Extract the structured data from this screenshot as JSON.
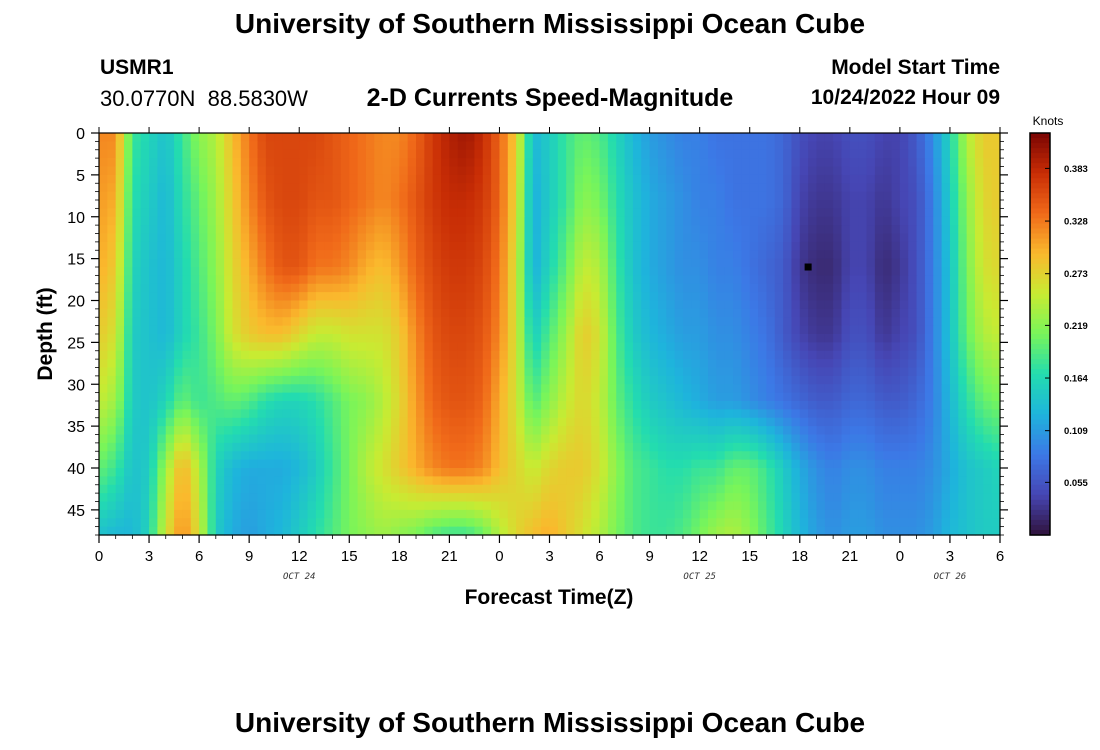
{
  "page": {
    "title": "University of Southern Mississippi Ocean Cube",
    "title_repeat": "University of Southern Mississippi Ocean Cube",
    "station_id": "USMR1",
    "coordinates": "30.0770N  88.5830W",
    "model_start_label": "Model Start Time",
    "model_start_value": "10/24/2022 Hour 09"
  },
  "chart_data": {
    "type": "heatmap",
    "title": "2-D Currents Speed-Magnitude",
    "xlabel": "Forecast Time(Z)",
    "ylabel": "Depth (ft)",
    "x_range_hours": [
      0,
      54
    ],
    "x_tick_hours": [
      0,
      3,
      6,
      9,
      12,
      15,
      18,
      21,
      24,
      27,
      30,
      33,
      36,
      39,
      42,
      45,
      48,
      51,
      54
    ],
    "x_tick_labels": [
      "0",
      "3",
      "6",
      "9",
      "12",
      "15",
      "18",
      "21",
      "0",
      "3",
      "6",
      "9",
      "12",
      "15",
      "18",
      "21",
      "0",
      "3",
      "6"
    ],
    "date_labels": [
      {
        "hour": 12,
        "text": "OCT 24"
      },
      {
        "hour": 36,
        "text": "OCT 25"
      },
      {
        "hour": 51,
        "text": "OCT 26"
      }
    ],
    "y_range_ft": [
      0,
      48
    ],
    "y_ticks": [
      0,
      5,
      10,
      15,
      20,
      25,
      30,
      35,
      40,
      45
    ],
    "y_tick_labels": [
      "0",
      "5",
      "10",
      "15",
      "20",
      "25",
      "30",
      "35",
      "40",
      "45"
    ],
    "colorbar": {
      "label": "Knots",
      "range": [
        0,
        0.42
      ],
      "ticks": [
        0.055,
        0.109,
        0.164,
        0.219,
        0.273,
        0.328,
        0.383
      ],
      "tick_labels": [
        "0.055",
        "0.109",
        "0.164",
        "0.219",
        "0.273",
        "0.328",
        "0.383"
      ]
    },
    "marker": {
      "hour": 42.5,
      "depth": 16
    },
    "depth_levels": [
      0,
      8,
      16,
      24,
      32,
      40,
      48
    ],
    "hours": [
      0,
      1,
      2,
      3,
      4,
      5,
      6,
      7,
      8,
      9,
      10,
      11,
      12,
      13,
      14,
      15,
      16,
      17,
      18,
      19,
      20,
      21,
      22,
      23,
      24,
      25,
      26,
      27,
      28,
      29,
      30,
      31,
      32,
      33,
      34,
      35,
      36,
      37,
      38,
      39,
      40,
      41,
      42,
      43,
      44,
      45,
      46,
      47,
      48,
      49,
      50,
      51,
      52,
      53,
      54
    ],
    "speed_knots": [
      [
        0.32,
        0.32,
        0.18,
        0.16,
        0.14,
        0.18,
        0.22,
        0.24,
        0.29,
        0.33,
        0.36,
        0.36,
        0.36,
        0.36,
        0.35,
        0.34,
        0.33,
        0.32,
        0.32,
        0.34,
        0.37,
        0.39,
        0.4,
        0.38,
        0.34,
        0.28,
        0.13,
        0.15,
        0.18,
        0.2,
        0.19,
        0.16,
        0.13,
        0.11,
        0.1,
        0.09,
        0.09,
        0.08,
        0.08,
        0.08,
        0.08,
        0.07,
        0.05,
        0.04,
        0.04,
        0.05,
        0.05,
        0.04,
        0.04,
        0.06,
        0.1,
        0.16,
        0.24,
        0.28,
        0.28
      ],
      [
        0.31,
        0.3,
        0.17,
        0.15,
        0.13,
        0.17,
        0.2,
        0.23,
        0.28,
        0.32,
        0.35,
        0.36,
        0.36,
        0.35,
        0.35,
        0.34,
        0.33,
        0.32,
        0.33,
        0.35,
        0.37,
        0.38,
        0.38,
        0.37,
        0.34,
        0.27,
        0.12,
        0.15,
        0.18,
        0.22,
        0.21,
        0.17,
        0.14,
        0.12,
        0.11,
        0.1,
        0.09,
        0.09,
        0.08,
        0.08,
        0.08,
        0.07,
        0.04,
        0.03,
        0.03,
        0.04,
        0.04,
        0.03,
        0.04,
        0.05,
        0.09,
        0.15,
        0.22,
        0.27,
        0.28
      ],
      [
        0.3,
        0.28,
        0.16,
        0.14,
        0.13,
        0.16,
        0.19,
        0.22,
        0.27,
        0.3,
        0.33,
        0.35,
        0.35,
        0.33,
        0.33,
        0.32,
        0.3,
        0.29,
        0.31,
        0.34,
        0.36,
        0.37,
        0.37,
        0.36,
        0.33,
        0.26,
        0.12,
        0.16,
        0.2,
        0.25,
        0.24,
        0.18,
        0.14,
        0.12,
        0.11,
        0.1,
        0.1,
        0.09,
        0.09,
        0.08,
        0.07,
        0.06,
        0.03,
        0.02,
        0.02,
        0.04,
        0.04,
        0.02,
        0.03,
        0.05,
        0.09,
        0.14,
        0.21,
        0.26,
        0.27
      ],
      [
        0.28,
        0.26,
        0.15,
        0.14,
        0.13,
        0.16,
        0.18,
        0.21,
        0.26,
        0.28,
        0.29,
        0.29,
        0.27,
        0.25,
        0.25,
        0.26,
        0.26,
        0.26,
        0.28,
        0.32,
        0.35,
        0.36,
        0.36,
        0.35,
        0.32,
        0.26,
        0.15,
        0.19,
        0.23,
        0.28,
        0.26,
        0.19,
        0.15,
        0.13,
        0.12,
        0.11,
        0.11,
        0.1,
        0.1,
        0.09,
        0.08,
        0.06,
        0.04,
        0.03,
        0.03,
        0.05,
        0.05,
        0.03,
        0.04,
        0.05,
        0.09,
        0.14,
        0.2,
        0.24,
        0.25
      ],
      [
        0.25,
        0.23,
        0.15,
        0.14,
        0.16,
        0.2,
        0.18,
        0.19,
        0.2,
        0.19,
        0.17,
        0.16,
        0.16,
        0.17,
        0.19,
        0.21,
        0.22,
        0.24,
        0.27,
        0.31,
        0.34,
        0.35,
        0.35,
        0.34,
        0.3,
        0.26,
        0.19,
        0.22,
        0.25,
        0.27,
        0.25,
        0.2,
        0.17,
        0.15,
        0.14,
        0.13,
        0.12,
        0.11,
        0.11,
        0.1,
        0.09,
        0.08,
        0.07,
        0.06,
        0.06,
        0.07,
        0.07,
        0.06,
        0.06,
        0.07,
        0.09,
        0.13,
        0.17,
        0.2,
        0.21
      ],
      [
        0.2,
        0.18,
        0.14,
        0.15,
        0.23,
        0.3,
        0.24,
        0.16,
        0.13,
        0.12,
        0.12,
        0.12,
        0.13,
        0.15,
        0.18,
        0.21,
        0.24,
        0.26,
        0.28,
        0.3,
        0.32,
        0.33,
        0.33,
        0.32,
        0.29,
        0.27,
        0.25,
        0.27,
        0.28,
        0.28,
        0.26,
        0.22,
        0.19,
        0.18,
        0.17,
        0.17,
        0.18,
        0.18,
        0.2,
        0.2,
        0.18,
        0.15,
        0.12,
        0.1,
        0.09,
        0.1,
        0.1,
        0.09,
        0.09,
        0.09,
        0.1,
        0.12,
        0.14,
        0.15,
        0.16
      ],
      [
        0.14,
        0.13,
        0.13,
        0.16,
        0.26,
        0.32,
        0.26,
        0.15,
        0.12,
        0.11,
        0.12,
        0.13,
        0.15,
        0.17,
        0.19,
        0.21,
        0.22,
        0.23,
        0.22,
        0.21,
        0.19,
        0.18,
        0.18,
        0.2,
        0.24,
        0.27,
        0.29,
        0.3,
        0.28,
        0.26,
        0.24,
        0.21,
        0.19,
        0.18,
        0.18,
        0.19,
        0.21,
        0.23,
        0.24,
        0.22,
        0.19,
        0.16,
        0.13,
        0.11,
        0.1,
        0.11,
        0.11,
        0.1,
        0.1,
        0.1,
        0.11,
        0.13,
        0.14,
        0.15,
        0.15
      ]
    ]
  }
}
